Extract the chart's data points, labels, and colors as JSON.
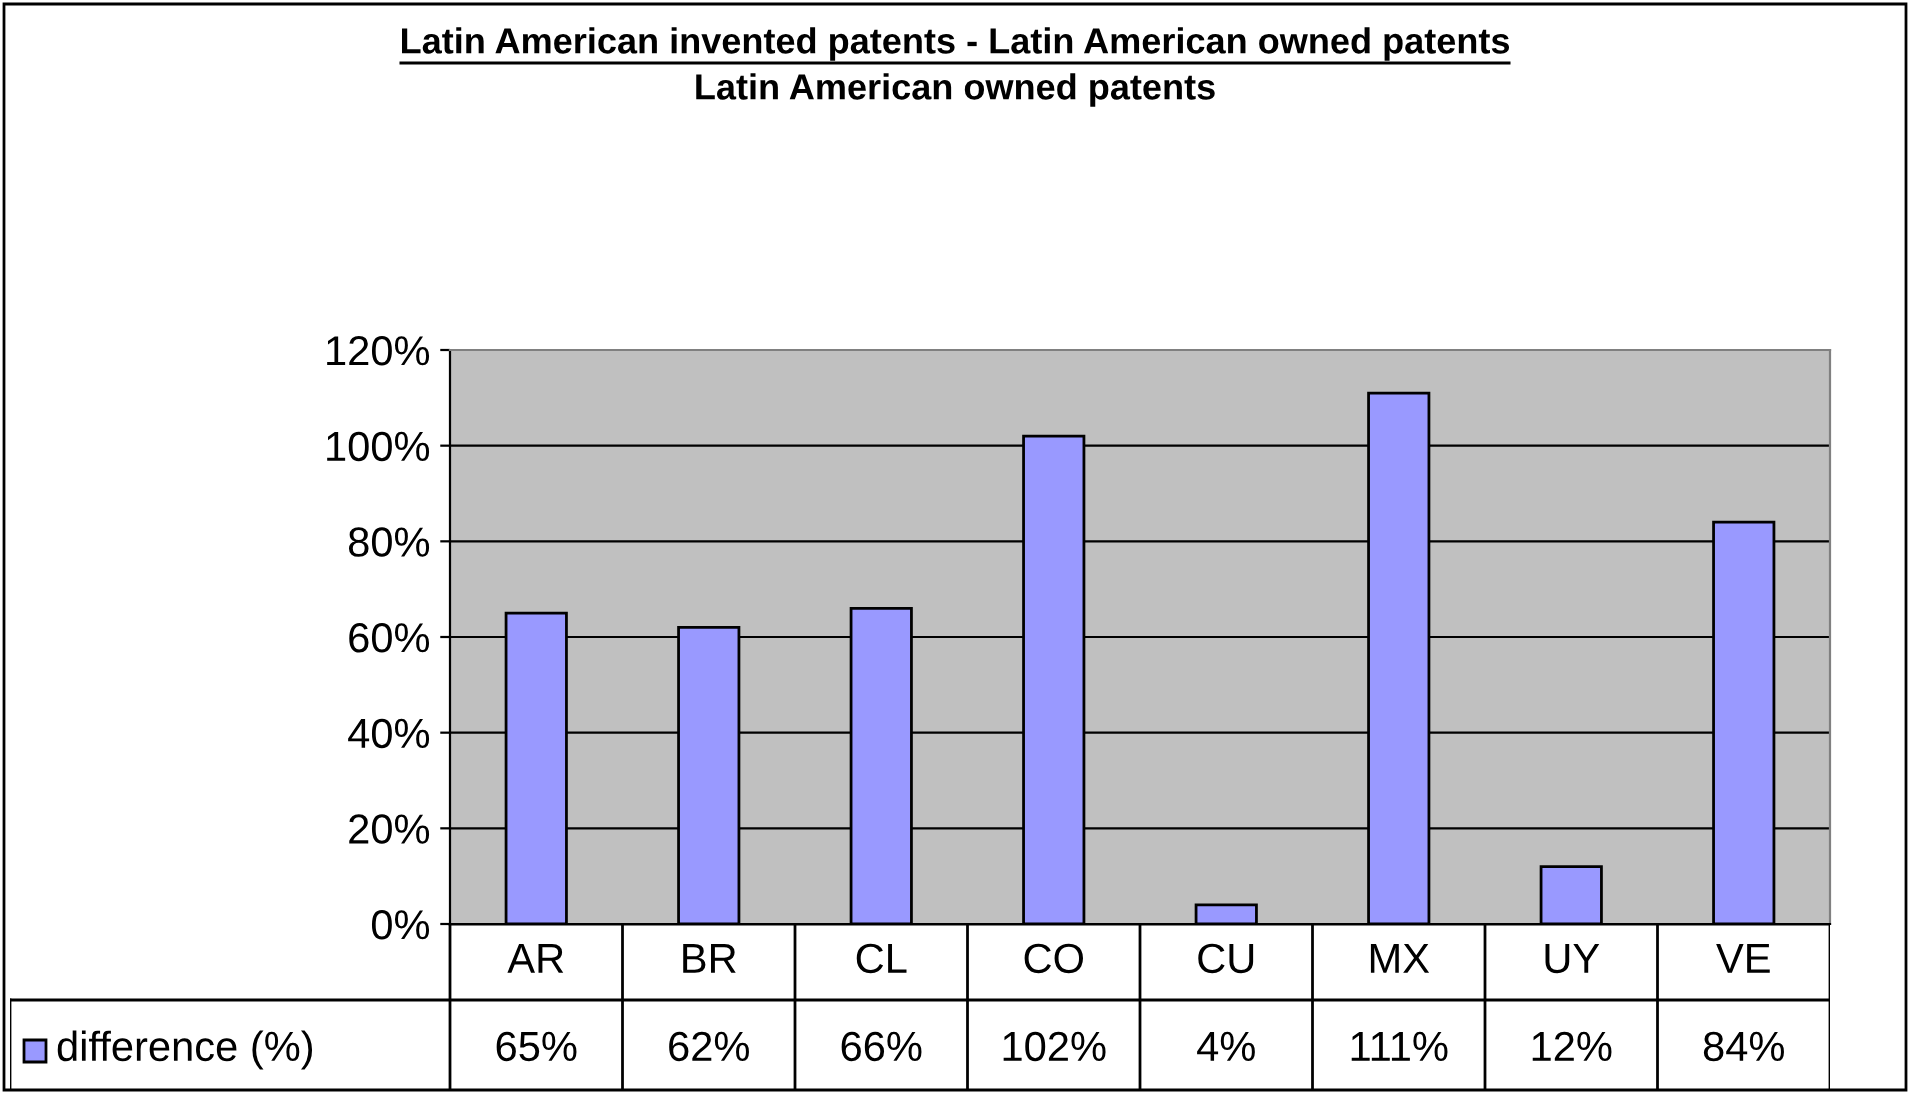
{
  "chart_data": {
    "type": "bar",
    "title": "Latin American invented patents - Latin American owned patents",
    "subtitle": "Latin American owned patents",
    "categories": [
      "AR",
      "BR",
      "CL",
      "CO",
      "CU",
      "MX",
      "UY",
      "VE"
    ],
    "series": [
      {
        "name": "difference (%)",
        "color": "#9999ff",
        "values": [
          65,
          62,
          66,
          102,
          4,
          111,
          12,
          84
        ],
        "value_labels": [
          "65%",
          "62%",
          "66%",
          "102%",
          "4%",
          "111%",
          "12%",
          "84%"
        ]
      }
    ],
    "ylim": [
      0,
      120
    ],
    "yticks": [
      {
        "value": 0,
        "label": "0%"
      },
      {
        "value": 20,
        "label": "20%"
      },
      {
        "value": 40,
        "label": "40%"
      },
      {
        "value": 60,
        "label": "60%"
      },
      {
        "value": 80,
        "label": "80%"
      },
      {
        "value": 100,
        "label": "100%"
      },
      {
        "value": 120,
        "label": "120%"
      }
    ],
    "grid": "y",
    "legend": "bottom"
  }
}
